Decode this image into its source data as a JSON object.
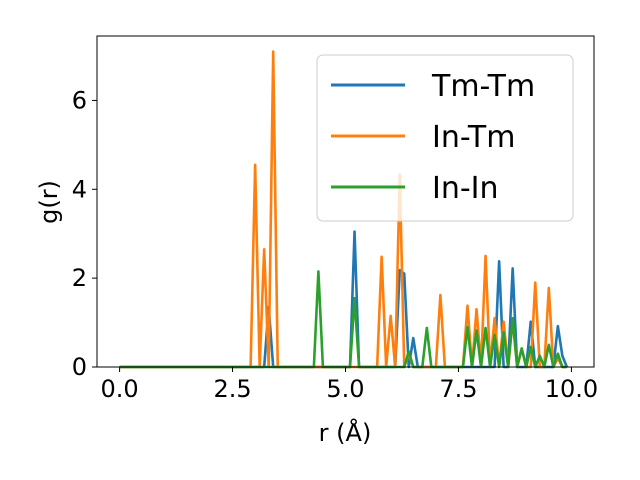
{
  "chart_data": {
    "type": "line",
    "xlabel": "r (Å)",
    "ylabel": "g(r)",
    "xlim": [
      -0.5,
      10.5
    ],
    "ylim": [
      0,
      7.45
    ],
    "x_ticks": [
      0.0,
      2.5,
      5.0,
      7.5,
      10.0
    ],
    "x_tick_labels": [
      "0.0",
      "2.5",
      "5.0",
      "7.5",
      "10.0"
    ],
    "y_ticks": [
      0,
      2,
      4,
      6
    ],
    "y_tick_labels": [
      "0",
      "2",
      "4",
      "6"
    ],
    "grid": false,
    "legend_position": "top-right",
    "series": [
      {
        "name": "Tm-Tm",
        "color": "#1f77b4",
        "x": [
          0,
          3.2,
          3.3,
          3.4,
          3.5,
          3.6,
          5.1,
          5.2,
          5.3,
          6.1,
          6.2,
          6.3,
          6.4,
          6.5,
          6.6,
          8.3,
          8.4,
          8.5,
          8.6,
          8.7,
          8.8,
          8.9,
          9.0,
          9.1,
          9.2,
          9.3,
          9.6,
          9.7,
          9.8,
          9.9
        ],
        "y": [
          0,
          0,
          1.35,
          0,
          0,
          0,
          0,
          3.05,
          0,
          0,
          2.18,
          2.1,
          0,
          0.65,
          0,
          0,
          2.38,
          0,
          0,
          2.22,
          0,
          0,
          0,
          1.02,
          0,
          0,
          0,
          0.92,
          0.25,
          0
        ]
      },
      {
        "name": "In-Tm",
        "color": "#ff7f0e",
        "x": [
          0,
          2.9,
          3.0,
          3.1,
          3.2,
          3.3,
          3.4,
          3.5,
          3.6,
          5.7,
          5.8,
          5.9,
          6.0,
          6.1,
          6.2,
          6.3,
          6.4,
          6.5,
          7.0,
          7.1,
          7.2,
          7.6,
          7.7,
          7.8,
          7.9,
          8.0,
          8.1,
          8.2,
          8.3,
          8.4,
          8.5,
          8.6,
          8.7,
          8.8,
          8.9,
          9.0,
          9.1,
          9.2,
          9.3,
          9.4,
          9.5,
          9.6,
          9.7,
          9.8,
          9.9
        ],
        "y": [
          0,
          0,
          4.55,
          0,
          2.65,
          0,
          7.1,
          0,
          0,
          0,
          2.48,
          0,
          1.15,
          0,
          4.33,
          0,
          0.3,
          0,
          0,
          1.62,
          0,
          0,
          1.38,
          0,
          1.3,
          0,
          2.5,
          0,
          1.1,
          0,
          1.02,
          0,
          1.05,
          0,
          0.4,
          0,
          0,
          1.9,
          0,
          0,
          1.78,
          0,
          0.2,
          0,
          0
        ]
      },
      {
        "name": "In-In",
        "color": "#2ca02c",
        "x": [
          0,
          4.3,
          4.4,
          4.5,
          5.1,
          5.2,
          5.3,
          6.3,
          6.4,
          6.5,
          6.6,
          6.7,
          6.8,
          6.9,
          7.0,
          7.6,
          7.7,
          7.8,
          7.9,
          8.0,
          8.1,
          8.2,
          8.3,
          8.4,
          8.5,
          8.6,
          8.7,
          8.8,
          8.9,
          9.0,
          9.1,
          9.2,
          9.3,
          9.4,
          9.5,
          9.6,
          9.7,
          9.8,
          9.9
        ],
        "y": [
          0,
          0,
          2.15,
          0,
          0,
          1.55,
          0,
          0,
          0.35,
          0,
          0,
          0,
          0.88,
          0,
          0,
          0,
          0.9,
          0,
          0.82,
          0,
          0.88,
          0,
          0.72,
          0,
          0.78,
          0,
          1.1,
          0,
          0.42,
          0,
          0.45,
          0,
          0.25,
          0,
          0.5,
          0,
          0.3,
          0,
          0
        ]
      }
    ]
  }
}
